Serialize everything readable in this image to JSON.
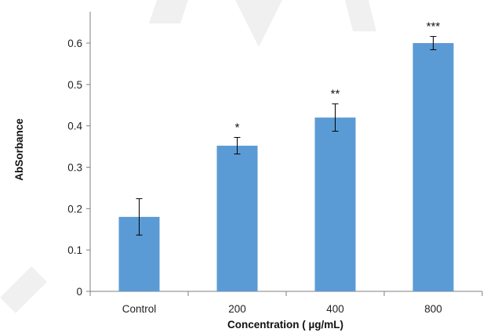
{
  "chart_data": {
    "type": "bar",
    "categories": [
      "Control",
      "200",
      "400",
      "800"
    ],
    "values": [
      0.18,
      0.352,
      0.42,
      0.6
    ],
    "errors": [
      0.044,
      0.02,
      0.033,
      0.016
    ],
    "significance": [
      "",
      "*",
      "**",
      "***"
    ],
    "title": "",
    "xlabel": "Concentration ( µg/mL)",
    "ylabel": "AbSorbance",
    "ylim": [
      0,
      0.7
    ],
    "yticks": [
      0,
      0.1,
      0.2,
      0.3,
      0.4,
      0.5,
      0.6
    ],
    "ytick_labels": [
      "0",
      "0.1",
      "0.2",
      "0.3",
      "0.4",
      "0.5",
      "0.6"
    ],
    "grid": false,
    "bar_color": "#5b9bd5",
    "axis_color": "#7f7f7f",
    "error_bar_color": "#000000"
  }
}
